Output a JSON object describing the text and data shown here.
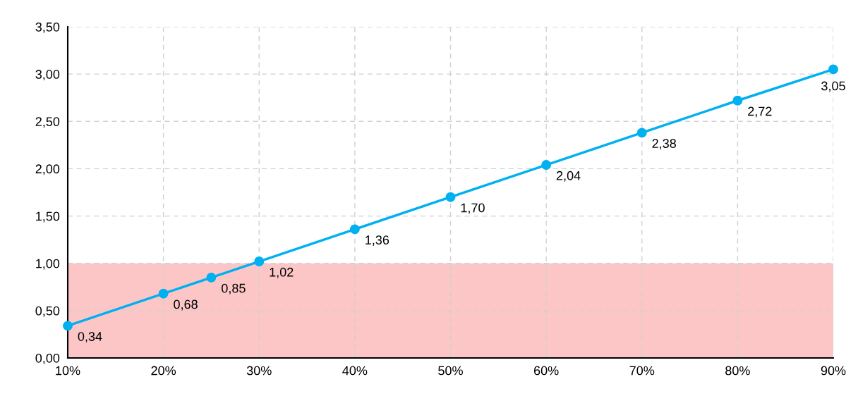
{
  "chart_data": {
    "type": "line",
    "x": [
      10,
      20,
      25,
      30,
      40,
      50,
      60,
      70,
      80,
      90
    ],
    "series": [
      {
        "color": "#00b0f0",
        "values": [
          0.34,
          0.68,
          0.85,
          1.02,
          1.36,
          1.7,
          2.04,
          2.38,
          2.72,
          3.05
        ],
        "value_labels": [
          "0,34",
          "0,68",
          "0,85",
          "1,02",
          "1,36",
          "1,70",
          "2,04",
          "2,38",
          "2,72",
          "3,05"
        ]
      }
    ],
    "xlim": [
      10,
      90
    ],
    "xticks": [
      {
        "value": 10,
        "label": "10%"
      },
      {
        "value": 20,
        "label": "20%"
      },
      {
        "value": 30,
        "label": "30%"
      },
      {
        "value": 40,
        "label": "40%"
      },
      {
        "value": 50,
        "label": "50%"
      },
      {
        "value": 60,
        "label": "60%"
      },
      {
        "value": 70,
        "label": "70%"
      },
      {
        "value": 80,
        "label": "80%"
      },
      {
        "value": 90,
        "label": "90%"
      }
    ],
    "ylim": [
      0,
      3.5
    ],
    "yticks": [
      {
        "value": 0,
        "label": "0,00"
      },
      {
        "value": 0.5,
        "label": "0,50"
      },
      {
        "value": 1,
        "label": "1,00"
      },
      {
        "value": 1.5,
        "label": "1,50"
      },
      {
        "value": 2,
        "label": "2,00"
      },
      {
        "value": 2.5,
        "label": "2,50"
      },
      {
        "value": 3,
        "label": "3,00"
      },
      {
        "value": 3.5,
        "label": "3,50"
      }
    ],
    "bands": [
      {
        "axis": "y",
        "from": 0,
        "to": 1,
        "color": "#fcc6c6"
      }
    ],
    "grid": true,
    "marker": "circle",
    "line_style": "solid"
  }
}
